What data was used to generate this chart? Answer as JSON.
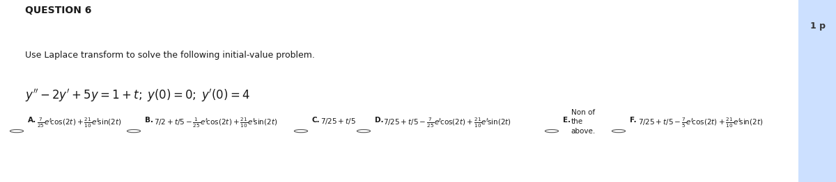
{
  "title": "QUESTION 6",
  "points": "1 p",
  "instruction": "Use Laplace transform to solve the following initial-value problem.",
  "bg_color": "#ffffff",
  "header_color": "#1a1a1a",
  "answer_box_color": "#cce0ff",
  "title_fontsize": 10,
  "instruction_fontsize": 9,
  "eq_fontsize": 12,
  "option_fontsize": 7.5
}
